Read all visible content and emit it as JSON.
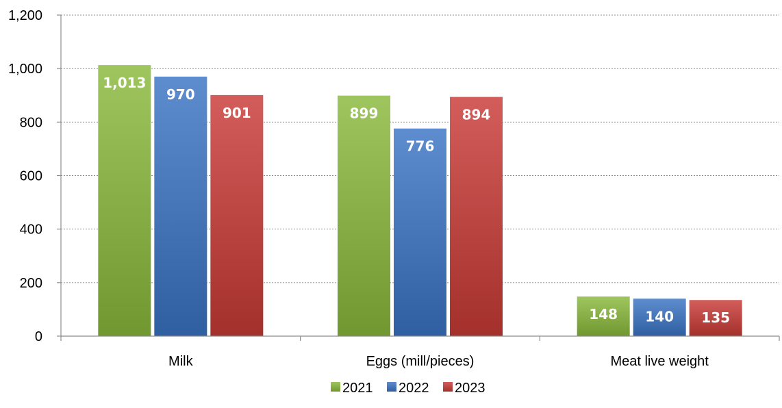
{
  "chart_data": {
    "type": "bar",
    "categories": [
      "Milk",
      "Eggs (mill/pieces)",
      "Meat live weight"
    ],
    "series": [
      {
        "name": "2021",
        "values": [
          1013,
          899,
          148
        ],
        "labels": [
          "1,013",
          "899",
          "148"
        ],
        "color": "#8ab83c"
      },
      {
        "name": "2022",
        "values": [
          970,
          776,
          140
        ],
        "labels": [
          "970",
          "776",
          "140"
        ],
        "color": "#3a74c4"
      },
      {
        "name": "2023",
        "values": [
          901,
          894,
          135
        ],
        "labels": [
          "901",
          "894",
          "135"
        ],
        "color": "#c83a36"
      }
    ],
    "yticks": [
      0,
      200,
      400,
      600,
      800,
      1000,
      1200
    ],
    "ytick_labels": [
      "0",
      "200",
      "400",
      "600",
      "800",
      "1,000",
      "1,200"
    ],
    "ylim": [
      0,
      1200
    ],
    "grid": true,
    "legend_position": "bottom"
  }
}
